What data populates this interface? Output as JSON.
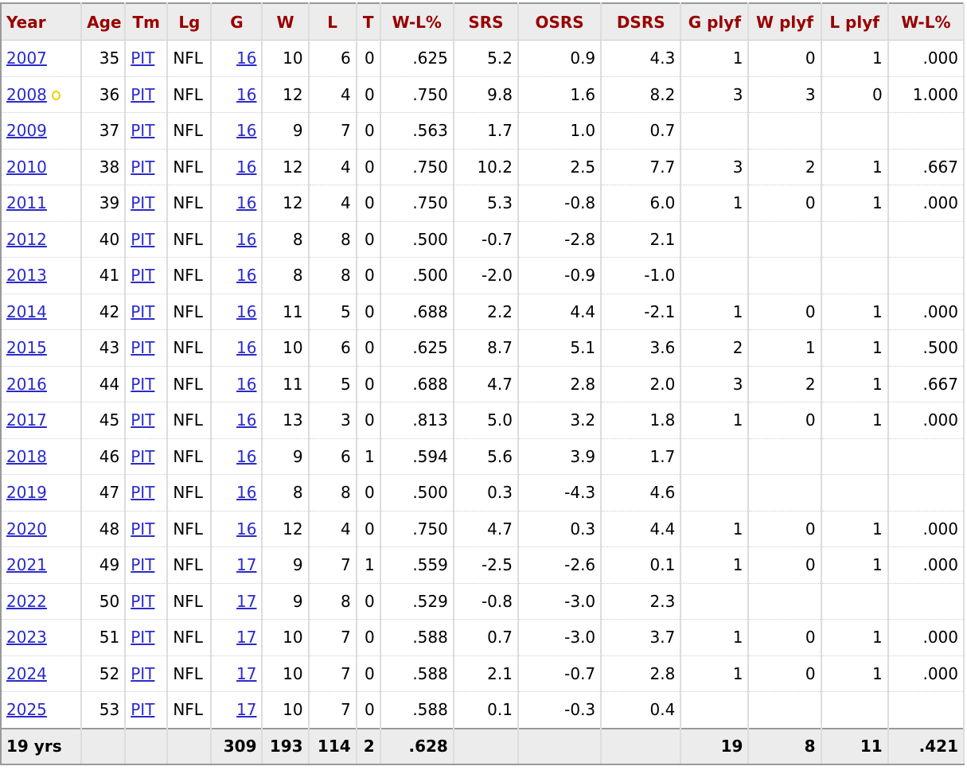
{
  "columns": [
    "Year",
    "Age",
    "Tm",
    "Lg",
    "G",
    "W",
    "L",
    "T",
    "W-L%",
    "SRS",
    "OSRS",
    "DSRS",
    "G plyf",
    "W plyf",
    "L plyf",
    "W-L%"
  ],
  "rows": [
    [
      "2007",
      "35",
      "PIT",
      "NFL",
      "16",
      "10",
      "6",
      "0",
      ".625",
      "5.2",
      "0.9",
      "4.3",
      "1",
      "0",
      "1",
      ".000"
    ],
    [
      "2008",
      "36",
      "PIT",
      "NFL",
      "16",
      "12",
      "4",
      "0",
      ".750",
      "9.8",
      "1.6",
      "8.2",
      "3",
      "3",
      "0",
      "1.000"
    ],
    [
      "2009",
      "37",
      "PIT",
      "NFL",
      "16",
      "9",
      "7",
      "0",
      ".563",
      "1.7",
      "1.0",
      "0.7",
      "",
      "",
      "",
      ""
    ],
    [
      "2010",
      "38",
      "PIT",
      "NFL",
      "16",
      "12",
      "4",
      "0",
      ".750",
      "10.2",
      "2.5",
      "7.7",
      "3",
      "2",
      "1",
      ".667"
    ],
    [
      "2011",
      "39",
      "PIT",
      "NFL",
      "16",
      "12",
      "4",
      "0",
      ".750",
      "5.3",
      "-0.8",
      "6.0",
      "1",
      "0",
      "1",
      ".000"
    ],
    [
      "2012",
      "40",
      "PIT",
      "NFL",
      "16",
      "8",
      "8",
      "0",
      ".500",
      "-0.7",
      "-2.8",
      "2.1",
      "",
      "",
      "",
      ""
    ],
    [
      "2013",
      "41",
      "PIT",
      "NFL",
      "16",
      "8",
      "8",
      "0",
      ".500",
      "-2.0",
      "-0.9",
      "-1.0",
      "",
      "",
      "",
      ""
    ],
    [
      "2014",
      "42",
      "PIT",
      "NFL",
      "16",
      "11",
      "5",
      "0",
      ".688",
      "2.2",
      "4.4",
      "-2.1",
      "1",
      "0",
      "1",
      ".000"
    ],
    [
      "2015",
      "43",
      "PIT",
      "NFL",
      "16",
      "10",
      "6",
      "0",
      ".625",
      "8.7",
      "5.1",
      "3.6",
      "2",
      "1",
      "1",
      ".500"
    ],
    [
      "2016",
      "44",
      "PIT",
      "NFL",
      "16",
      "11",
      "5",
      "0",
      ".688",
      "4.7",
      "2.8",
      "2.0",
      "3",
      "2",
      "1",
      ".667"
    ],
    [
      "2017",
      "45",
      "PIT",
      "NFL",
      "16",
      "13",
      "3",
      "0",
      ".813",
      "5.0",
      "3.2",
      "1.8",
      "1",
      "0",
      "1",
      ".000"
    ],
    [
      "2018",
      "46",
      "PIT",
      "NFL",
      "16",
      "9",
      "6",
      "1",
      ".594",
      "5.6",
      "3.9",
      "1.7",
      "",
      "",
      "",
      ""
    ],
    [
      "2019",
      "47",
      "PIT",
      "NFL",
      "16",
      "8",
      "8",
      "0",
      ".500",
      "0.3",
      "-4.3",
      "4.6",
      "",
      "",
      "",
      ""
    ],
    [
      "2020",
      "48",
      "PIT",
      "NFL",
      "16",
      "12",
      "4",
      "0",
      ".750",
      "4.7",
      "0.3",
      "4.4",
      "1",
      "0",
      "1",
      ".000"
    ],
    [
      "2021",
      "49",
      "PIT",
      "NFL",
      "17",
      "9",
      "7",
      "1",
      ".559",
      "-2.5",
      "-2.6",
      "0.1",
      "1",
      "0",
      "1",
      ".000"
    ],
    [
      "2022",
      "50",
      "PIT",
      "NFL",
      "17",
      "9",
      "8",
      "0",
      ".529",
      "-0.8",
      "-3.0",
      "2.3",
      "",
      "",
      "",
      ""
    ],
    [
      "2023",
      "51",
      "PIT",
      "NFL",
      "17",
      "10",
      "7",
      "0",
      ".588",
      "0.7",
      "-3.0",
      "3.7",
      "1",
      "0",
      "1",
      ".000"
    ],
    [
      "2024",
      "52",
      "PIT",
      "NFL",
      "17",
      "10",
      "7",
      "0",
      ".588",
      "2.1",
      "-0.7",
      "2.8",
      "1",
      "0",
      "1",
      ".000"
    ],
    [
      "2025",
      "53",
      "PIT",
      "NFL",
      "17",
      "10",
      "7",
      "0",
      ".588",
      "0.1",
      "-0.3",
      "0.4",
      "",
      "",
      "",
      ""
    ]
  ],
  "award_rows": [
    "2008"
  ],
  "award_icon": "super-bowl-champion-ring-icon",
  "totals": [
    "19 yrs",
    "",
    "",
    "",
    "309",
    "193",
    "114",
    "2",
    ".628",
    "",
    "",
    "",
    "19",
    "8",
    "11",
    ".421"
  ]
}
